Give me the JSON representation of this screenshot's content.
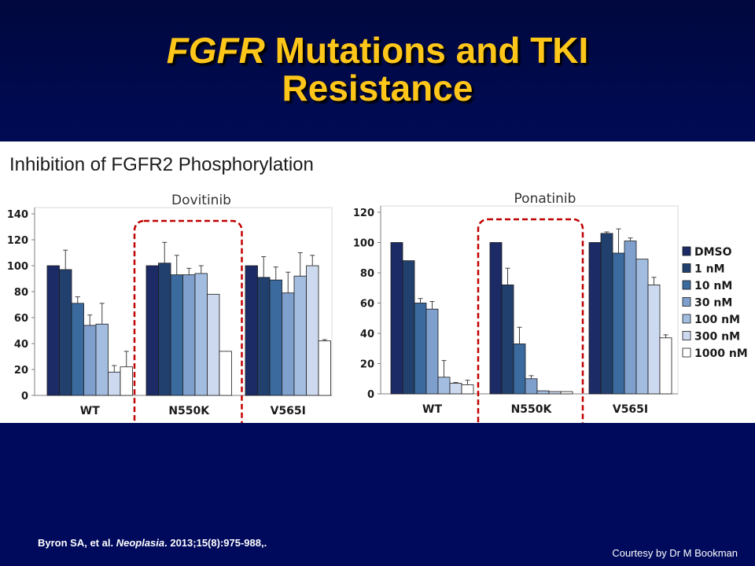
{
  "slide": {
    "title_italic": "FGFR",
    "title_rest": " Mutations and TKI",
    "title_line2": "Resistance",
    "panel_heading": "Inhibition of FGFR2 Phosphorylation",
    "citation_authors": "Byron SA, et al. ",
    "citation_journal": "Neoplasia",
    "citation_rest": ". 2013;15(8):975-988,.",
    "courtesy": "Courtesy by Dr M Bookman"
  },
  "colors": {
    "title": "#ffc61a",
    "background": "#000a5c",
    "highlight_box": "#c00000",
    "series": [
      "#1c2b66",
      "#22406e",
      "#3a6a9e",
      "#7f9fcc",
      "#a3bde0",
      "#cdd9ee",
      "#ffffff"
    ]
  },
  "chart_data": [
    {
      "type": "bar",
      "title": "Dovitinib",
      "categories": [
        "WT",
        "N550K",
        "V565I"
      ],
      "ylim": [
        0,
        140
      ],
      "yticks": [
        0,
        20,
        40,
        60,
        80,
        100,
        120,
        140
      ],
      "grid": false,
      "highlight_category": "N550K",
      "series": [
        {
          "name": "DMSO",
          "values": [
            100,
            100,
            100
          ],
          "errors": [
            0,
            0,
            0
          ]
        },
        {
          "name": "1 nM",
          "values": [
            97,
            102,
            91
          ],
          "errors": [
            15,
            16,
            16
          ]
        },
        {
          "name": "10 nM",
          "values": [
            71,
            93,
            89
          ],
          "errors": [
            5,
            15,
            10
          ]
        },
        {
          "name": "30 nM",
          "values": [
            54,
            93,
            79
          ],
          "errors": [
            8,
            5,
            16
          ]
        },
        {
          "name": "100 nM",
          "values": [
            55,
            94,
            92
          ],
          "errors": [
            16,
            6,
            18
          ]
        },
        {
          "name": "300 nM",
          "values": [
            18,
            78,
            100
          ],
          "errors": [
            5,
            0,
            8
          ]
        },
        {
          "name": "1000 nM",
          "values": [
            22,
            34,
            42
          ],
          "errors": [
            12,
            0,
            1
          ]
        }
      ]
    },
    {
      "type": "bar",
      "title": "Ponatinib",
      "categories": [
        "WT",
        "N550K",
        "V565I"
      ],
      "ylim": [
        0,
        120
      ],
      "yticks": [
        0,
        20,
        40,
        60,
        80,
        100,
        120
      ],
      "grid": false,
      "highlight_category": "N550K",
      "legend_position": "right",
      "series": [
        {
          "name": "DMSO",
          "values": [
            100,
            100,
            100
          ],
          "errors": [
            0,
            0,
            0
          ]
        },
        {
          "name": "1 nM",
          "values": [
            88,
            72,
            106
          ],
          "errors": [
            0,
            11,
            1
          ]
        },
        {
          "name": "10 nM",
          "values": [
            60,
            33,
            93
          ],
          "errors": [
            3,
            11,
            16
          ]
        },
        {
          "name": "30 nM",
          "values": [
            56,
            10,
            101
          ],
          "errors": [
            5,
            2,
            2
          ]
        },
        {
          "name": "100 nM",
          "values": [
            11,
            2,
            89
          ],
          "errors": [
            11,
            0,
            0
          ]
        },
        {
          "name": "300 nM",
          "values": [
            7,
            1.5,
            72
          ],
          "errors": [
            0.5,
            0,
            5
          ]
        },
        {
          "name": "1000 nM",
          "values": [
            6,
            1.5,
            37
          ],
          "errors": [
            3,
            0,
            2
          ]
        }
      ]
    }
  ]
}
